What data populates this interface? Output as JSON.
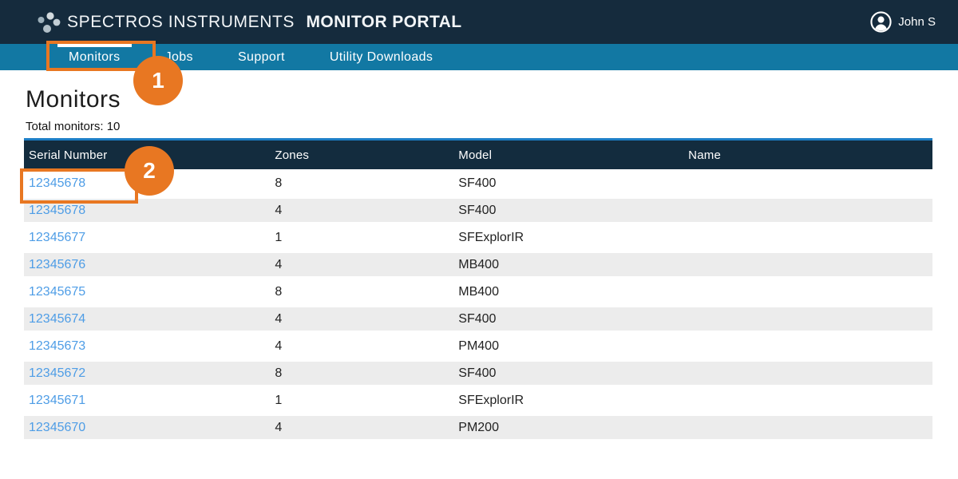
{
  "header": {
    "brand_primary": "SPECTROS INSTRUMENTS",
    "brand_secondary": "MONITOR PORTAL",
    "user_name": "John S"
  },
  "nav": {
    "tabs": [
      {
        "label": "Monitors",
        "active": true
      },
      {
        "label": "Jobs",
        "active": false
      },
      {
        "label": "Support",
        "active": false
      },
      {
        "label": "Utility Downloads",
        "active": false
      }
    ]
  },
  "page": {
    "title": "Monitors",
    "total_label": "Total monitors: 10"
  },
  "table": {
    "columns": [
      "Serial Number",
      "Zones",
      "Model",
      "Name"
    ],
    "rows": [
      {
        "serial": "12345678",
        "zones": "8",
        "model": "SF400",
        "name": ""
      },
      {
        "serial": "12345678",
        "zones": "4",
        "model": "SF400",
        "name": ""
      },
      {
        "serial": "12345677",
        "zones": "1",
        "model": "SFExplorIR",
        "name": ""
      },
      {
        "serial": "12345676",
        "zones": "4",
        "model": "MB400",
        "name": ""
      },
      {
        "serial": "12345675",
        "zones": "8",
        "model": "MB400",
        "name": ""
      },
      {
        "serial": "12345674",
        "zones": "4",
        "model": "SF400",
        "name": ""
      },
      {
        "serial": "12345673",
        "zones": "4",
        "model": "PM400",
        "name": ""
      },
      {
        "serial": "12345672",
        "zones": "8",
        "model": "SF400",
        "name": ""
      },
      {
        "serial": "12345671",
        "zones": "1",
        "model": "SFExplorIR",
        "name": ""
      },
      {
        "serial": "12345670",
        "zones": "4",
        "model": "PM200",
        "name": ""
      }
    ]
  },
  "annotations": {
    "step1": "1",
    "step2": "2"
  },
  "colors": {
    "header_bg": "#152b3d",
    "nav_bg": "#1278a3",
    "table_header_bg": "#132c3e",
    "table_topline": "#1d7ec6",
    "row_alt_bg": "#ececec",
    "link": "#4e9de6",
    "annotation": "#e87722"
  }
}
